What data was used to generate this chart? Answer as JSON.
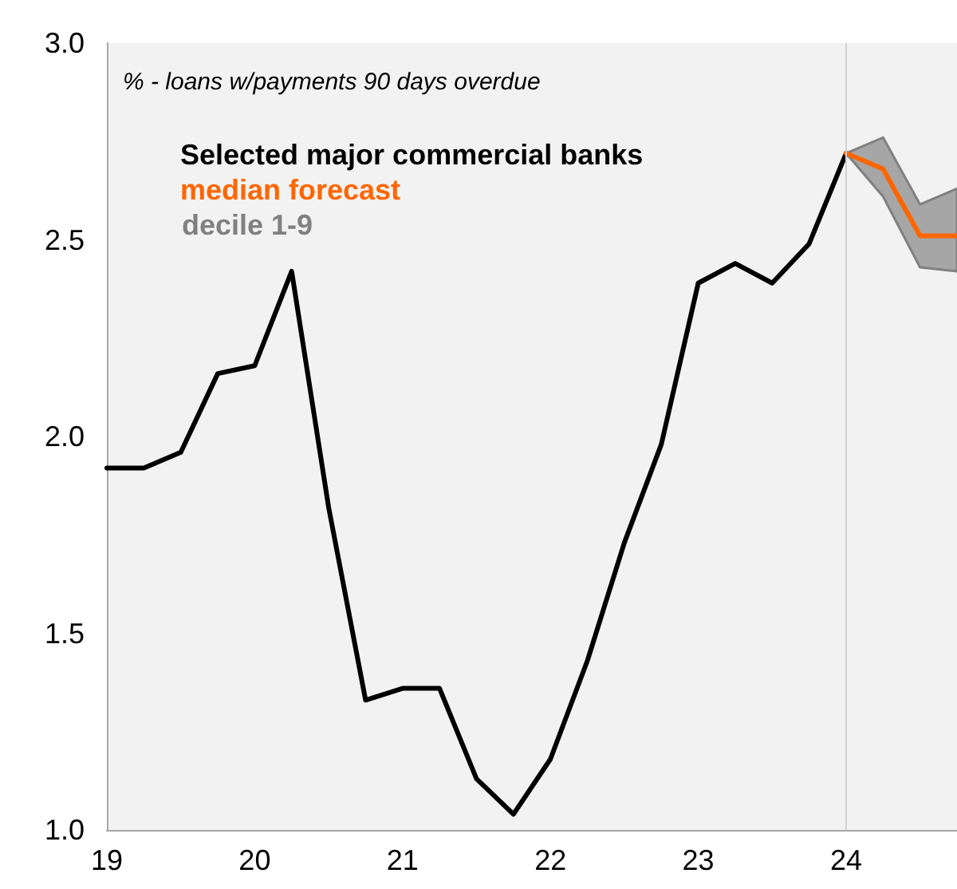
{
  "chart_data": {
    "type": "line",
    "annotations": [
      "% - loans w/payments 90 days overdue",
      "decile 1-9"
    ],
    "xlim": [
      19,
      24.75
    ],
    "xticks": [
      19,
      20,
      21,
      22,
      23,
      24
    ],
    "ylim": [
      1.0,
      3.0
    ],
    "yticks": [
      {
        "value": 1.0,
        "label": "1.0"
      },
      {
        "value": 1.5,
        "label": "1.5"
      },
      {
        "value": 2.0,
        "label": "2.0"
      },
      {
        "value": 2.5,
        "label": "2.5"
      },
      {
        "value": 3.0,
        "label": "3.0"
      }
    ],
    "grid": false,
    "legend": "top left",
    "marker": "none",
    "line_style": "solid",
    "ref_lines": [
      {
        "axis": "x",
        "value": 24,
        "color": "#d0d0d0"
      }
    ],
    "series": [
      {
        "name": "Selected major commercial banks",
        "color": "#000000",
        "x": [
          19,
          19.25,
          19.5,
          19.75,
          20,
          20.25,
          20.5,
          20.75,
          21,
          21.25,
          21.5,
          21.75,
          22,
          22.25,
          22.5,
          22.75,
          23,
          23.25,
          23.5,
          23.75,
          24
        ],
        "values": [
          1.92,
          1.92,
          1.96,
          2.16,
          2.18,
          2.42,
          1.82,
          1.33,
          1.36,
          1.36,
          1.13,
          1.04,
          1.18,
          1.43,
          1.73,
          1.98,
          2.39,
          2.44,
          2.39,
          2.49,
          2.72
        ]
      },
      {
        "name": "median forecast",
        "color": "#ff6600",
        "x": [
          24,
          24.25,
          24.5,
          24.75
        ],
        "values": [
          2.72,
          2.68,
          2.51,
          2.51
        ],
        "lower": [
          2.72,
          2.61,
          2.43,
          2.42
        ],
        "upper": [
          2.72,
          2.76,
          2.59,
          2.63
        ]
      }
    ]
  }
}
